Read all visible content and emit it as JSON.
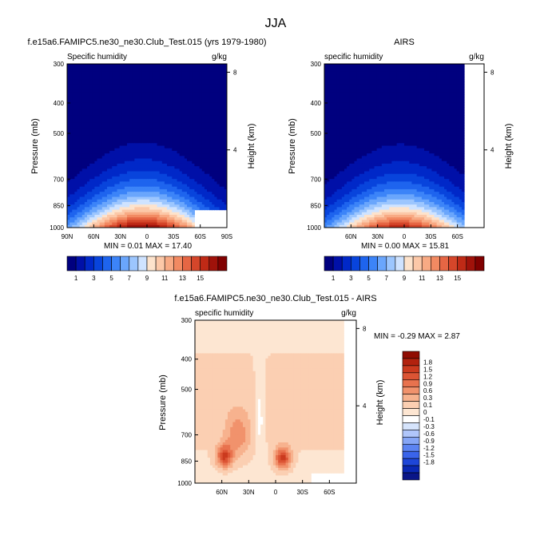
{
  "main_title": "JJA",
  "colors": {
    "blues": [
      "#00007f",
      "#0010a8",
      "#0028c8",
      "#0844dc",
      "#1e64ee",
      "#3c84f8",
      "#6aa6fc",
      "#9cc6fe",
      "#cfe3ff"
    ],
    "reds": [
      "#fde3cc",
      "#fcc8a8",
      "#f8aa84",
      "#f28a62",
      "#e66644",
      "#d5462a",
      "#bf2a16",
      "#a0120a",
      "#800000"
    ],
    "diff_levels": [
      "#0a1688",
      "#0a28b4",
      "#1e46d8",
      "#3a64ea",
      "#5c84f2",
      "#86a6f6",
      "#b0c6fa",
      "#d6e4fc",
      "#ffffff",
      "#fde6d2",
      "#fbcfb2",
      "#f7b28e",
      "#f1926c",
      "#e8724e",
      "#dc5434",
      "#cb3a1e",
      "#b2220e",
      "#900c02"
    ]
  },
  "chart_data": [
    {
      "type": "heatmap",
      "id": "model",
      "title": "f.e15a6.FAMIPC5.ne30_ne30.Club_Test.015 (yrs 1979-1980)",
      "left_string": "Specific humidity",
      "right_string": "g/kg",
      "xlabel": "",
      "ylabel": "Pressure (mb)",
      "y2label": "Height (km)",
      "x_ticks": [
        "90N",
        "60N",
        "30N",
        "0",
        "30S",
        "60S",
        "90S"
      ],
      "x_tick_values": [
        90,
        60,
        30,
        0,
        -30,
        -60,
        -90
      ],
      "xlim": [
        90,
        -90
      ],
      "y_ticks": [
        "300",
        "400",
        "500",
        "700",
        "850",
        "1000"
      ],
      "y_tick_values": [
        300,
        400,
        500,
        700,
        850,
        1000
      ],
      "ylim": [
        1000,
        300
      ],
      "y_scale": "log",
      "y2_ticks": [
        "8",
        "4"
      ],
      "y2_tick_values_km": [
        8,
        4
      ],
      "stats": "MIN =  0.01  MAX =  17.40",
      "min": 0.01,
      "max": 17.4,
      "peak_lat": 5,
      "colorbar": {
        "labels": [
          "1",
          "3",
          "5",
          "7",
          "9",
          "11",
          "13",
          "15"
        ],
        "levels": [
          1,
          2,
          3,
          4,
          5,
          6,
          7,
          8,
          9,
          10,
          11,
          12,
          13,
          14,
          15,
          16,
          17
        ]
      }
    },
    {
      "type": "heatmap",
      "id": "airs",
      "title": "AIRS",
      "left_string": "specific humidity",
      "right_string": "g/kg",
      "xlabel": "",
      "ylabel": "Pressure (mb)",
      "y2label": "Height (km)",
      "x_ticks": [
        "60N",
        "30N",
        "0",
        "30S",
        "60S"
      ],
      "x_tick_values": [
        60,
        30,
        0,
        -30,
        -60
      ],
      "xlim": [
        90,
        -90
      ],
      "y_ticks": [
        "300",
        "400",
        "500",
        "700",
        "850",
        "1000"
      ],
      "y_tick_values": [
        300,
        400,
        500,
        700,
        850,
        1000
      ],
      "ylim": [
        1000,
        300
      ],
      "y_scale": "log",
      "y2_ticks": [
        "8",
        "4"
      ],
      "y2_tick_values_km": [
        8,
        4
      ],
      "stats": "MIN =  0.00  MAX =  15.81",
      "min": 0.0,
      "max": 15.81,
      "peak_lat": 5,
      "colorbar": {
        "labels": [
          "1",
          "3",
          "5",
          "7",
          "9",
          "11",
          "13",
          "15"
        ],
        "levels": [
          1,
          2,
          3,
          4,
          5,
          6,
          7,
          8,
          9,
          10,
          11,
          12,
          13,
          14,
          15,
          16,
          17
        ]
      }
    },
    {
      "type": "heatmap",
      "id": "difference",
      "title": "f.e15a6.FAMIPC5.ne30_ne30.Club_Test.015 - AIRS",
      "left_string": "specific humidity",
      "right_string": "g/kg",
      "xlabel": "",
      "ylabel": "Pressure (mb)",
      "y2label": "Height (km)",
      "x_ticks": [
        "60N",
        "30N",
        "0",
        "30S",
        "60S"
      ],
      "x_tick_values": [
        60,
        30,
        0,
        -30,
        -60
      ],
      "xlim": [
        90,
        -90
      ],
      "y_ticks": [
        "300",
        "400",
        "500",
        "700",
        "850",
        "1000"
      ],
      "y_tick_values": [
        300,
        400,
        500,
        700,
        850,
        1000
      ],
      "ylim": [
        1000,
        300
      ],
      "y_scale": "log",
      "y2_ticks": [
        "8",
        "4"
      ],
      "y2_tick_values_km": [
        8,
        4
      ],
      "stats": "MIN = -0.29  MAX =  2.87",
      "min": -0.29,
      "max": 2.87,
      "colorbar": {
        "labels": [
          "1.8",
          "1.5",
          "1.2",
          "0.9",
          "0.6",
          "0.3",
          "0.1",
          "0",
          "-0.1",
          "-0.3",
          "-0.6",
          "-0.9",
          "-1.2",
          "-1.5",
          "-1.8"
        ],
        "levels": [
          -1.8,
          -1.5,
          -1.2,
          -0.9,
          -0.6,
          -0.3,
          -0.1,
          0,
          0.1,
          0.3,
          0.6,
          0.9,
          1.2,
          1.5,
          1.8
        ]
      }
    }
  ]
}
